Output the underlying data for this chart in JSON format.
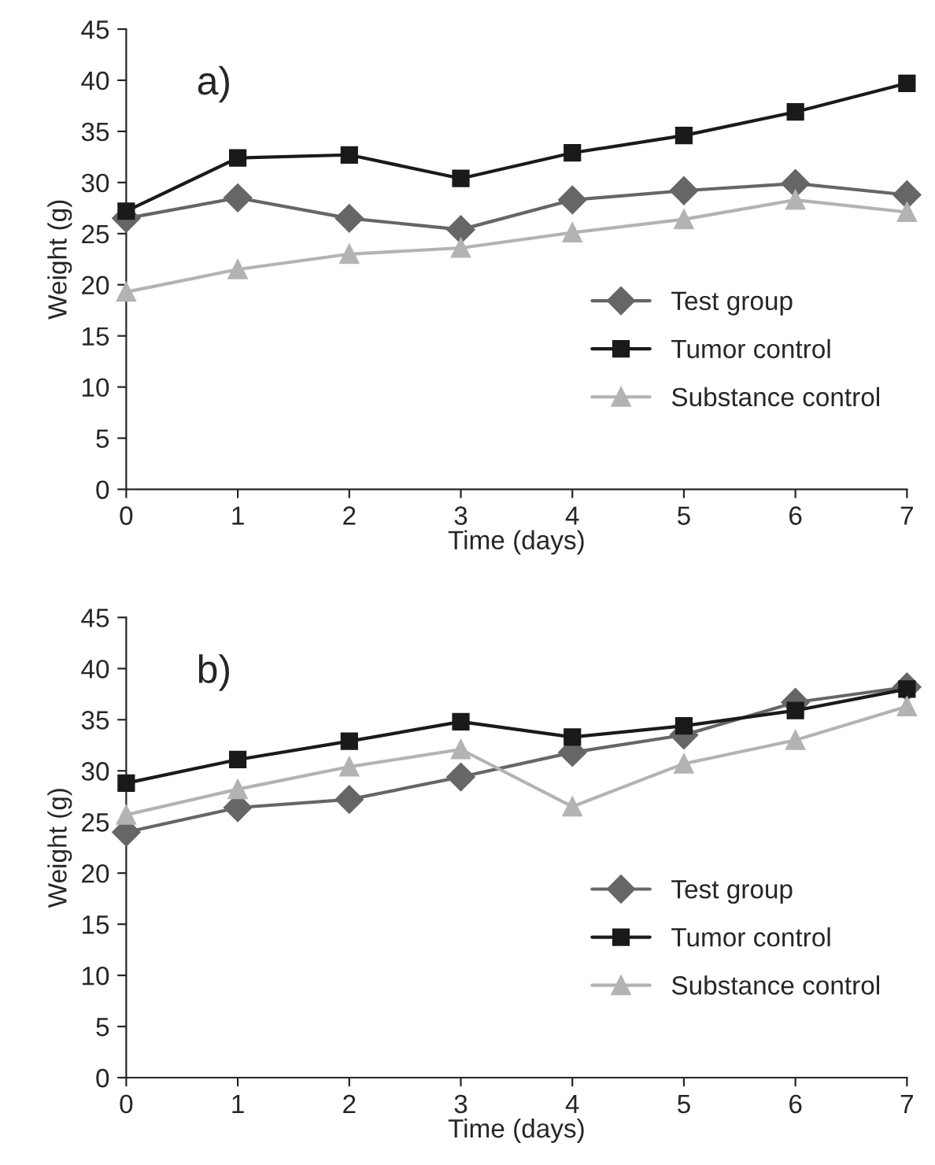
{
  "chart_data": [
    {
      "type": "line",
      "xlabel": "Time (days)",
      "ylabel": "Weight (g)",
      "annotations": [
        "a)"
      ],
      "x": [
        0,
        1,
        2,
        3,
        4,
        5,
        6,
        7
      ],
      "xlim": [
        0,
        7
      ],
      "xticks": [
        0,
        1,
        2,
        3,
        4,
        5,
        6,
        7
      ],
      "ylim": [
        0,
        45
      ],
      "yticks": [
        0,
        5,
        10,
        15,
        20,
        25,
        30,
        35,
        40,
        45
      ],
      "grid": false,
      "legend": "right",
      "series": [
        {
          "name": "Test group",
          "color": "#666666",
          "marker": "diamond",
          "values": [
            26.5,
            28.5,
            26.5,
            25.4,
            28.3,
            29.2,
            29.9,
            28.8
          ]
        },
        {
          "name": "Tumor control",
          "color": "#1a1a1a",
          "marker": "square",
          "values": [
            27.2,
            32.4,
            32.7,
            30.4,
            32.9,
            34.6,
            36.9,
            39.7
          ]
        },
        {
          "name": "Substance control",
          "color": "#b3b3b3",
          "marker": "triangle",
          "values": [
            19.3,
            21.5,
            23.0,
            23.6,
            25.1,
            26.4,
            28.3,
            27.1
          ]
        }
      ]
    },
    {
      "type": "line",
      "xlabel": "Time (days)",
      "ylabel": "Weight (g)",
      "annotations": [
        "b)"
      ],
      "x": [
        0,
        1,
        2,
        3,
        4,
        5,
        6,
        7
      ],
      "xlim": [
        0,
        7
      ],
      "xticks": [
        0,
        1,
        2,
        3,
        4,
        5,
        6,
        7
      ],
      "ylim": [
        0,
        45
      ],
      "yticks": [
        0,
        5,
        10,
        15,
        20,
        25,
        30,
        35,
        40,
        45
      ],
      "grid": false,
      "legend": "right",
      "series": [
        {
          "name": "Test group",
          "color": "#666666",
          "marker": "diamond",
          "values": [
            24.0,
            26.4,
            27.2,
            29.4,
            31.8,
            33.5,
            36.7,
            38.2
          ]
        },
        {
          "name": "Tumor control",
          "color": "#1a1a1a",
          "marker": "square",
          "values": [
            28.8,
            31.1,
            32.9,
            34.8,
            33.3,
            34.4,
            35.9,
            38.0
          ]
        },
        {
          "name": "Substance control",
          "color": "#b3b3b3",
          "marker": "triangle",
          "values": [
            25.7,
            28.2,
            30.4,
            32.1,
            26.5,
            30.7,
            33.0,
            36.3
          ]
        }
      ]
    }
  ]
}
